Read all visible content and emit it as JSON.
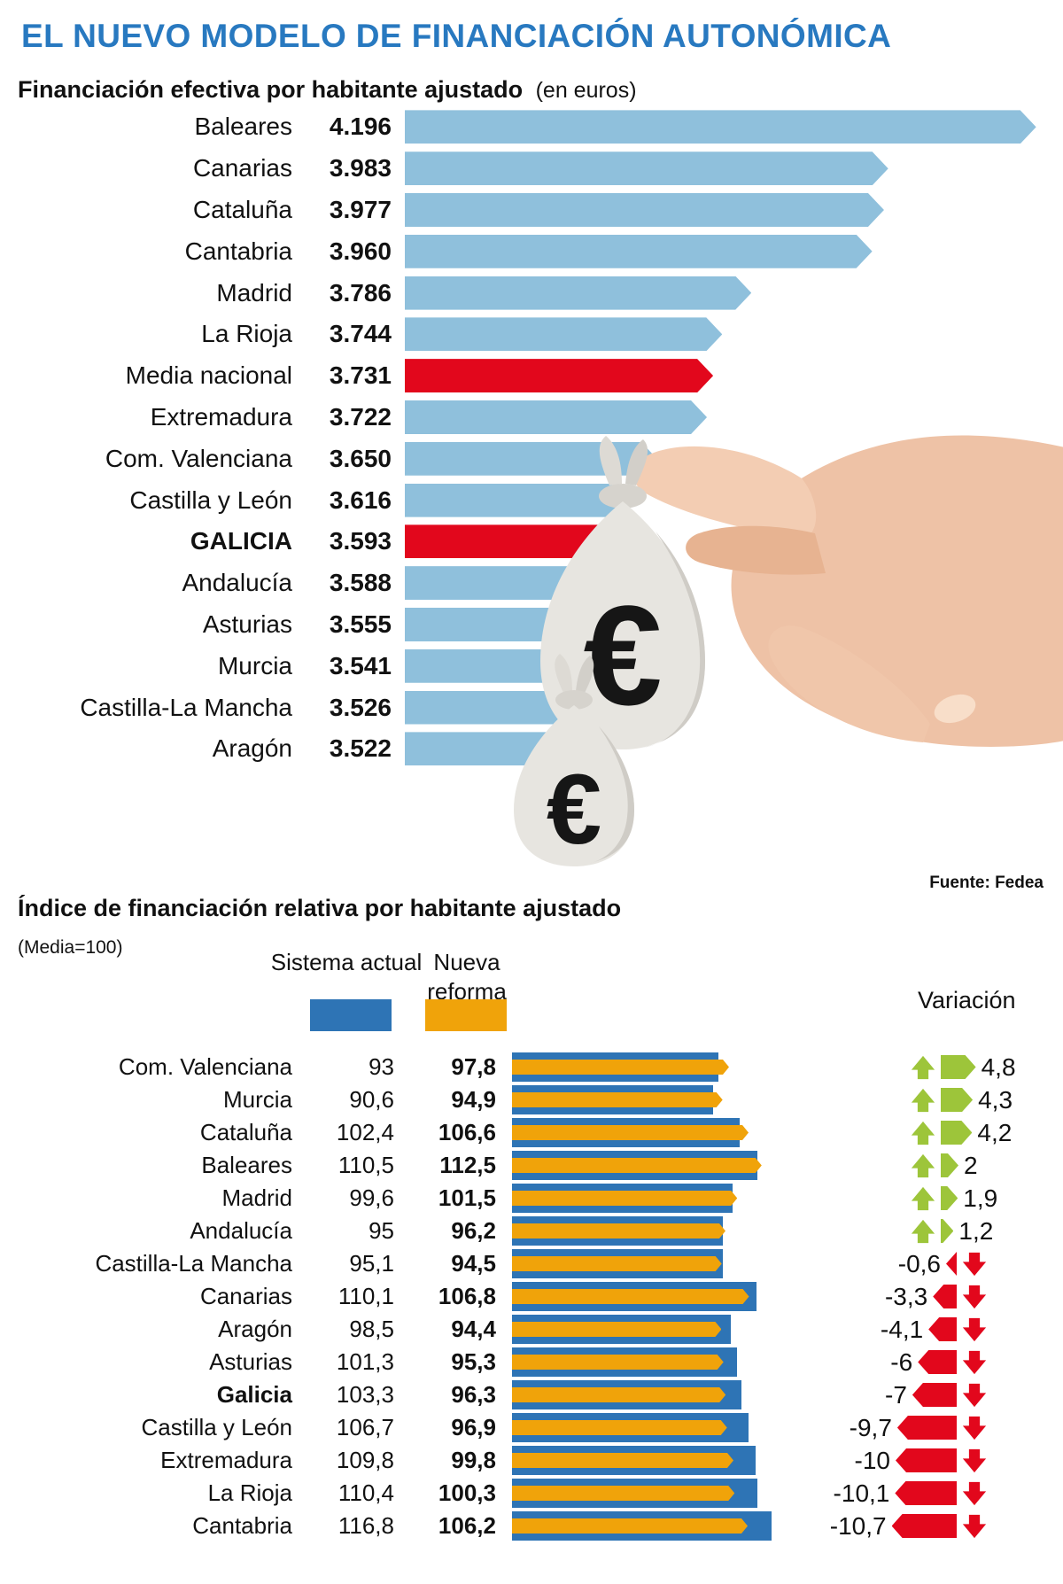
{
  "title": "EL NUEVO MODELO DE FINANCIACIÓN AUTONÓMICA",
  "source": "Fuente: Fedea",
  "colors": {
    "title_blue": "#2879c0",
    "bar_light_blue": "#8fc0dc",
    "highlight_red": "#e2071c",
    "sistema_blue": "#2e74b5",
    "reforma_orange": "#f0a30a",
    "variation_green": "#9dc53a",
    "variation_red": "#e2071c",
    "text": "#111111"
  },
  "illustration": {
    "euro_symbol_large": "€",
    "euro_symbol_small": "€"
  },
  "chart_data": [
    {
      "type": "bar",
      "title": "Financiación efectiva por habitante ajustado",
      "unit_note": "(en euros)",
      "categories": [
        "Baleares",
        "Canarias",
        "Cataluña",
        "Cantabria",
        "Madrid",
        "La Rioja",
        "Media nacional",
        "Extremadura",
        "Com. Valenciana",
        "Castilla y León",
        "GALICIA",
        "Andalucía",
        "Asturias",
        "Murcia",
        "Castilla-La Mancha",
        "Aragón"
      ],
      "values_display": [
        "4.196",
        "3.983",
        "3.977",
        "3.960",
        "3.786",
        "3.744",
        "3.731",
        "3.722",
        "3.650",
        "3.616",
        "3.593",
        "3.588",
        "3.555",
        "3.541",
        "3.526",
        "3.522"
      ],
      "values": [
        4196,
        3983,
        3977,
        3960,
        3786,
        3744,
        3731,
        3722,
        3650,
        3616,
        3593,
        3588,
        3555,
        3541,
        3526,
        3522
      ],
      "highlight_red_indices": [
        6,
        10
      ],
      "bold_label_indices": [
        10
      ],
      "xlim": [
        3287,
        4200
      ],
      "grid": false,
      "legend_position": "none"
    },
    {
      "type": "bar",
      "title": "Índice de financiación relativa por habitante ajustado",
      "subtitle": "(Media=100)",
      "variation_label": "Variación",
      "categories": [
        "Com. Valenciana",
        "Murcia",
        "Cataluña",
        "Baleares",
        "Madrid",
        "Andalucía",
        "Castilla-La Mancha",
        "Canarias",
        "Aragón",
        "Asturias",
        "Galicia",
        "Castilla y León",
        "Extremadura",
        "La Rioja",
        "Cantabria"
      ],
      "series": [
        {
          "name": "Sistema actual",
          "values": [
            "93",
            "90,6",
            "102,4",
            "110,5",
            "99,6",
            "95",
            "95,1",
            "110,1",
            "98,5",
            "101,3",
            "103,3",
            "106,7",
            "109,8",
            "110,4",
            "116,8"
          ]
        },
        {
          "name": "Nueva reforma",
          "values": [
            "97,8",
            "94,9",
            "106,6",
            "112,5",
            "101,5",
            "96,2",
            "94,5",
            "106,8",
            "94,4",
            "95,3",
            "96,3",
            "96,9",
            "99,8",
            "100,3",
            "106,2"
          ]
        }
      ],
      "variations": [
        "4,8",
        "4,3",
        "4,2",
        "2",
        "1,9",
        "1,2",
        "-0,6",
        "-3,3",
        "-4,1",
        "-6",
        "-7",
        "-9,7",
        "-10",
        "-10,1",
        "-10,7"
      ],
      "bold_label_indices": [
        10
      ],
      "xlim": [
        0,
        117
      ],
      "grid": false,
      "legend_position": "top"
    }
  ]
}
